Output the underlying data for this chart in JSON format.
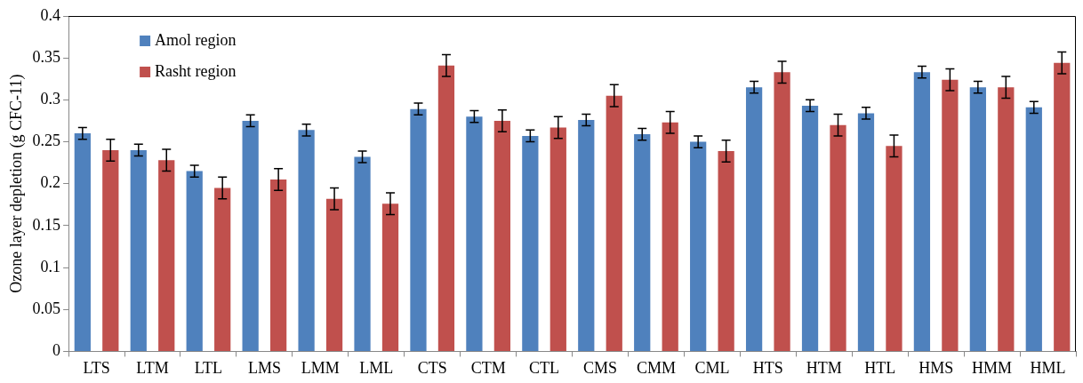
{
  "chart_data": {
    "type": "bar",
    "ylabel": "Ozone layer depletion (g CFC-11)",
    "categories": [
      "LTS",
      "LTM",
      "LTL",
      "LMS",
      "LMM",
      "LML",
      "CTS",
      "CTM",
      "CTL",
      "CMS",
      "CMM",
      "CML",
      "HTS",
      "HTM",
      "HTL",
      "HMS",
      "HMM",
      "HML"
    ],
    "series": [
      {
        "name": "Amol region",
        "color": "#4f81bd",
        "values": [
          0.26,
          0.24,
          0.215,
          0.275,
          0.264,
          0.232,
          0.289,
          0.28,
          0.257,
          0.276,
          0.259,
          0.25,
          0.315,
          0.293,
          0.284,
          0.333,
          0.315,
          0.291
        ],
        "errors": [
          0.007,
          0.007,
          0.007,
          0.007,
          0.007,
          0.007,
          0.007,
          0.007,
          0.007,
          0.007,
          0.007,
          0.007,
          0.007,
          0.007,
          0.007,
          0.007,
          0.007,
          0.007
        ]
      },
      {
        "name": "Rasht region",
        "color": "#c0504d",
        "values": [
          0.24,
          0.228,
          0.195,
          0.205,
          0.182,
          0.176,
          0.341,
          0.275,
          0.267,
          0.305,
          0.273,
          0.239,
          0.333,
          0.27,
          0.245,
          0.324,
          0.315,
          0.344
        ],
        "errors": [
          0.013,
          0.013,
          0.013,
          0.013,
          0.013,
          0.013,
          0.013,
          0.013,
          0.013,
          0.013,
          0.013,
          0.013,
          0.013,
          0.013,
          0.013,
          0.013,
          0.013,
          0.013
        ]
      }
    ],
    "ylim": [
      0,
      0.4
    ],
    "yticks": [
      0,
      0.05,
      0.1,
      0.15,
      0.2,
      0.25,
      0.3,
      0.35,
      0.4
    ],
    "grid": false,
    "legend": "top left"
  }
}
